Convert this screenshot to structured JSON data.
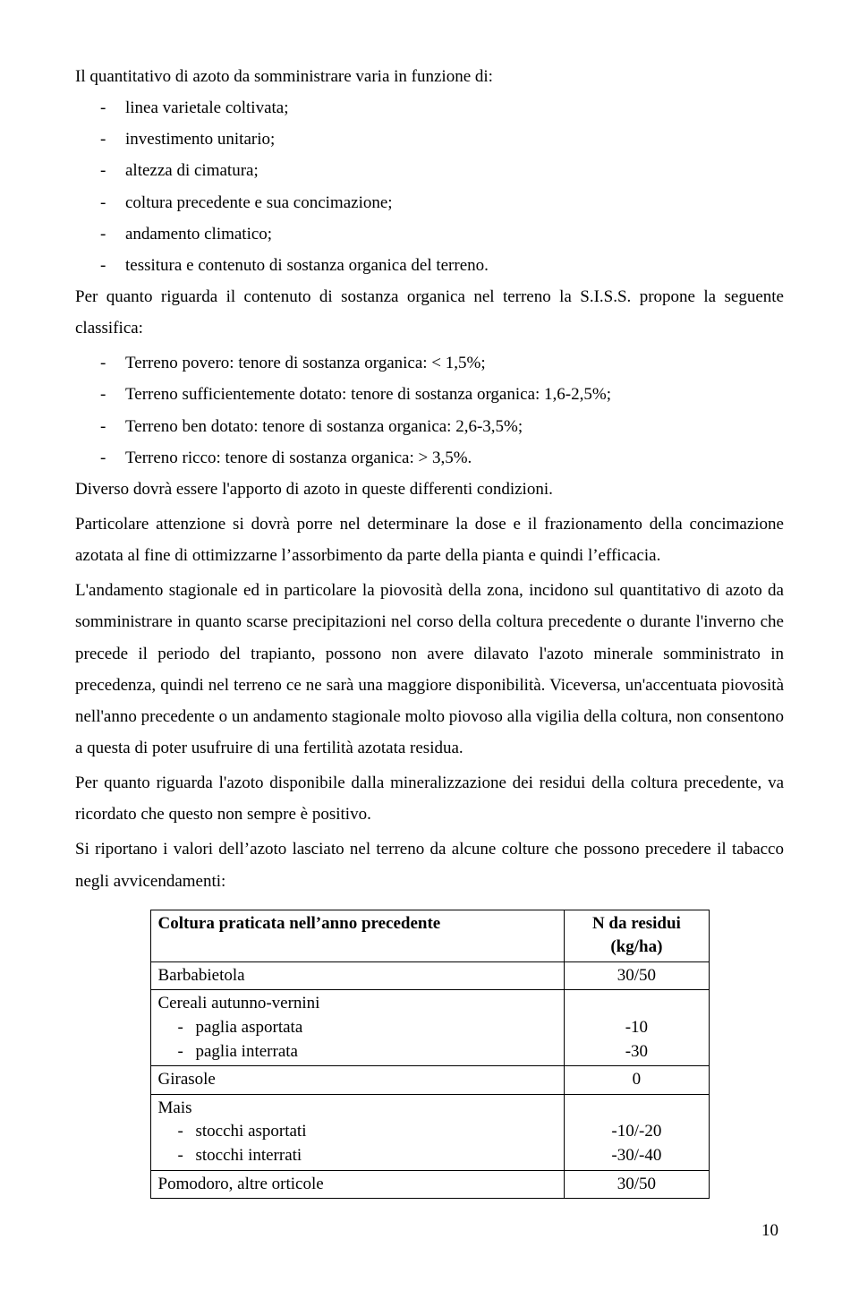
{
  "intro": "Il quantitativo di azoto da somministrare varia in funzione di:",
  "factors": [
    "linea varietale coltivata;",
    "investimento unitario;",
    "altezza di cimatura;",
    "coltura precedente e sua concimazione;",
    "andamento climatico;",
    "tessitura e contenuto di sostanza organica del terreno."
  ],
  "siss_intro": "Per quanto riguarda il contenuto di sostanza organica nel terreno la S.I.S.S. propone la seguente classifica:",
  "siss_items": [
    "Terreno povero: tenore di sostanza organica: <  1,5%;",
    "Terreno sufficientemente dotato: tenore di sostanza organica: 1,6-2,5%;",
    "Terreno ben dotato: tenore di sostanza organica: 2,6-3,5%;",
    "Terreno ricco: tenore di sostanza organica: >  3,5%."
  ],
  "p1": "Diverso dovrà essere l'apporto di azoto in queste differenti condizioni.",
  "p2": "Particolare attenzione si dovrà porre nel determinare la dose e il frazionamento della concimazione azotata al fine di ottimizzarne l’assorbimento da parte della pianta e quindi l’efficacia.",
  "p3": "L'andamento stagionale ed in particolare la piovosità della zona, incidono sul quantitativo di azoto da somministrare in quanto scarse precipitazioni nel corso della coltura precedente o durante l'inverno che precede il periodo del trapianto, possono non avere dilavato l'azoto minerale somministrato in precedenza, quindi nel terreno ce ne sarà una maggiore disponibilità. Viceversa, un'accentuata piovosità nell'anno precedente o un andamento stagionale molto piovoso alla vigilia della coltura, non consentono a questa di poter usufruire di una fertilità azotata residua.",
  "p4": "Per quanto riguarda l'azoto disponibile dalla mineralizzazione dei residui della coltura precedente, va ricordato che questo non sempre è positivo.",
  "p5": "Si riportano i valori dell’azoto lasciato nel terreno da alcune colture che possono precedere il tabacco negli avvicendamenti:",
  "table": {
    "col1_header": "Coltura praticata nell’anno precedente",
    "col2_header_line1": "N da residui",
    "col2_header_line2": "(kg/ha)",
    "rows": [
      {
        "label": "Barbabietola",
        "value": "30/50",
        "sub": []
      },
      {
        "label": "Cereali autunno-vernini",
        "value": "",
        "sub": [
          {
            "label": "paglia asportata",
            "value": "-10"
          },
          {
            "label": "paglia interrata",
            "value": "-30"
          }
        ]
      },
      {
        "label": "Girasole",
        "value": "0",
        "sub": []
      },
      {
        "label": "Mais",
        "value": "",
        "sub": [
          {
            "label": "stocchi asportati",
            "value": "-10/-20"
          },
          {
            "label": "stocchi interrati",
            "value": "-30/-40"
          }
        ]
      },
      {
        "label": "Pomodoro, altre orticole",
        "value": "30/50",
        "sub": []
      }
    ]
  },
  "page_number": "10"
}
